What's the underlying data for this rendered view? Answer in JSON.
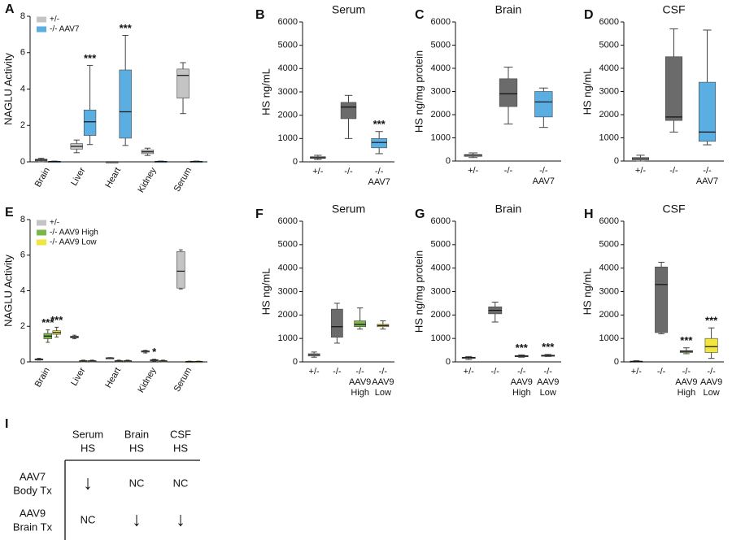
{
  "chart_data": [
    {
      "type": "box",
      "panel": "A",
      "ylabel": "NAGLU Activity",
      "ylim": [
        0,
        8
      ],
      "yticks": [
        0,
        2,
        4,
        6,
        8
      ],
      "categories": [
        "Brain",
        "Liver",
        "Heart",
        "Kidney",
        "Serum"
      ],
      "series": [
        {
          "name": "+/-",
          "color": "#c4c4c4",
          "min": [
            0,
            0.5,
            0,
            0.35,
            2.65
          ],
          "q1": [
            0.05,
            0.7,
            0,
            0.45,
            3.5
          ],
          "median": [
            0.1,
            0.85,
            0,
            0.55,
            4.75
          ],
          "q3": [
            0.15,
            1.0,
            0,
            0.65,
            5.1
          ],
          "max": [
            0.2,
            1.2,
            0,
            0.75,
            5.45
          ],
          "labels": [
            null,
            null,
            null,
            null,
            null
          ]
        },
        {
          "name": "-/- AAV7",
          "color": "#5aaee2",
          "min": [
            0,
            0.95,
            0.9,
            0,
            0
          ],
          "q1": [
            0.01,
            1.45,
            1.3,
            0.01,
            0.01
          ],
          "median": [
            0.02,
            2.2,
            2.75,
            0.02,
            0.02
          ],
          "q3": [
            0.03,
            2.85,
            5.05,
            0.03,
            0.03
          ],
          "max": [
            0.04,
            5.3,
            6.95,
            0.04,
            0.04
          ],
          "labels": [
            null,
            "***",
            "***",
            null,
            null
          ]
        }
      ]
    },
    {
      "type": "box",
      "panel": "B",
      "title": "Serum",
      "ylabel": "HS ng/mL",
      "ylim": [
        0,
        6000
      ],
      "yticks": [
        0,
        1000,
        2000,
        3000,
        4000,
        5000,
        6000
      ],
      "categories": [
        [
          "+/-"
        ],
        [
          "-/-"
        ],
        [
          "-/-",
          "AAV7"
        ]
      ],
      "boxes": [
        {
          "min": 100,
          "q1": 150,
          "median": 180,
          "q3": 220,
          "max": 280,
          "color": "#c4c4c4"
        },
        {
          "min": 1000,
          "q1": 1850,
          "median": 2350,
          "q3": 2550,
          "max": 2850,
          "color": "#6b6b6b"
        },
        {
          "min": 350,
          "q1": 600,
          "median": 830,
          "q3": 1000,
          "max": 1300,
          "color": "#5aaee2",
          "label": "***"
        }
      ]
    },
    {
      "type": "box",
      "panel": "C",
      "title": "Brain",
      "ylabel": "HS ng/mg protein",
      "ylim": [
        0,
        6000
      ],
      "yticks": [
        0,
        1000,
        2000,
        3000,
        4000,
        5000,
        6000
      ],
      "categories": [
        [
          "+/-"
        ],
        [
          "-/-"
        ],
        [
          "-/-",
          "AAV7"
        ]
      ],
      "boxes": [
        {
          "min": 150,
          "q1": 200,
          "median": 250,
          "q3": 280,
          "max": 350,
          "color": "#c4c4c4"
        },
        {
          "min": 1600,
          "q1": 2350,
          "median": 2900,
          "q3": 3550,
          "max": 4050,
          "color": "#6b6b6b"
        },
        {
          "min": 1450,
          "q1": 1900,
          "median": 2550,
          "q3": 3000,
          "max": 3150,
          "color": "#5aaee2"
        }
      ]
    },
    {
      "type": "box",
      "panel": "D",
      "title": "CSF",
      "ylabel": "HS ng/mL",
      "ylim": [
        0,
        6000
      ],
      "yticks": [
        0,
        1000,
        2000,
        3000,
        4000,
        5000,
        6000
      ],
      "categories": [
        [
          "+/-"
        ],
        [
          "-/-"
        ],
        [
          "-/-",
          "AAV7"
        ]
      ],
      "boxes": [
        {
          "min": 0,
          "q1": 50,
          "median": 100,
          "q3": 150,
          "max": 250,
          "color": "#c4c4c4"
        },
        {
          "min": 1250,
          "q1": 1750,
          "median": 1900,
          "q3": 4500,
          "max": 5700,
          "color": "#6b6b6b"
        },
        {
          "min": 700,
          "q1": 850,
          "median": 1250,
          "q3": 3400,
          "max": 5650,
          "color": "#5aaee2"
        }
      ]
    },
    {
      "type": "box",
      "panel": "E",
      "ylabel": "NAGLU Activity",
      "ylim": [
        0,
        8
      ],
      "yticks": [
        0,
        2,
        4,
        6,
        8
      ],
      "categories": [
        "Brain",
        "Liver",
        "Heart",
        "Kidney",
        "Serum"
      ],
      "series": [
        {
          "name": "+/-",
          "color": "#c4c4c4",
          "min": [
            0.1,
            1.3,
            0.2,
            0.5,
            4.1
          ],
          "q1": [
            0.12,
            1.35,
            0.21,
            0.55,
            4.15
          ],
          "median": [
            0.15,
            1.4,
            0.22,
            0.6,
            5.1
          ],
          "q3": [
            0.17,
            1.45,
            0.23,
            0.62,
            6.2
          ],
          "max": [
            0.2,
            1.5,
            0.24,
            0.65,
            6.3
          ],
          "labels": [
            null,
            null,
            null,
            null,
            null
          ]
        },
        {
          "name": "-/- AAV9 High",
          "color": "#7ab648",
          "min": [
            1.1,
            0,
            0,
            0.05,
            0
          ],
          "q1": [
            1.3,
            0.03,
            0.03,
            0.08,
            0.01
          ],
          "median": [
            1.45,
            0.05,
            0.05,
            0.1,
            0.02
          ],
          "q3": [
            1.6,
            0.07,
            0.07,
            0.12,
            0.03
          ],
          "max": [
            1.8,
            0.1,
            0.1,
            0.15,
            0.04
          ],
          "labels": [
            "***",
            null,
            null,
            "*",
            null
          ]
        },
        {
          "name": "-/- AAV9 Low",
          "color": "#f0e63c",
          "min": [
            1.4,
            0,
            0,
            0,
            0
          ],
          "q1": [
            1.55,
            0.03,
            0.03,
            0.03,
            0.01
          ],
          "median": [
            1.65,
            0.05,
            0.05,
            0.05,
            0.02
          ],
          "q3": [
            1.75,
            0.07,
            0.07,
            0.07,
            0.03
          ],
          "max": [
            1.95,
            0.1,
            0.1,
            0.1,
            0.04
          ],
          "labels": [
            "***",
            null,
            null,
            null,
            null
          ]
        }
      ]
    },
    {
      "type": "box",
      "panel": "F",
      "title": "Serum",
      "ylabel": "HS ng/mL",
      "ylim": [
        0,
        6000
      ],
      "yticks": [
        0,
        1000,
        2000,
        3000,
        4000,
        5000,
        6000
      ],
      "categories": [
        [
          "+/-"
        ],
        [
          "-/-"
        ],
        [
          "-/-",
          "AAV9",
          "High"
        ],
        [
          "-/-",
          "AAV9",
          "Low"
        ]
      ],
      "boxes": [
        {
          "min": 200,
          "q1": 250,
          "median": 300,
          "q3": 350,
          "max": 420,
          "color": "#c4c4c4"
        },
        {
          "min": 800,
          "q1": 1050,
          "median": 1500,
          "q3": 2250,
          "max": 2500,
          "color": "#6b6b6b"
        },
        {
          "min": 1400,
          "q1": 1500,
          "median": 1600,
          "q3": 1750,
          "max": 2300,
          "color": "#7ab648"
        },
        {
          "min": 1400,
          "q1": 1500,
          "median": 1550,
          "q3": 1600,
          "max": 1750,
          "color": "#f0e63c"
        }
      ]
    },
    {
      "type": "box",
      "panel": "G",
      "title": "Brain",
      "ylabel": "HS ng/mg protein",
      "ylim": [
        0,
        6000
      ],
      "yticks": [
        0,
        1000,
        2000,
        3000,
        4000,
        5000,
        6000
      ],
      "categories": [
        [
          "+/-"
        ],
        [
          "-/-"
        ],
        [
          "-/-",
          "AAV9",
          "High"
        ],
        [
          "-/-",
          "AAV9",
          "Low"
        ]
      ],
      "boxes": [
        {
          "min": 100,
          "q1": 150,
          "median": 180,
          "q3": 200,
          "max": 230,
          "color": "#c4c4c4"
        },
        {
          "min": 1700,
          "q1": 2050,
          "median": 2200,
          "q3": 2350,
          "max": 2550,
          "color": "#6b6b6b"
        },
        {
          "min": 200,
          "q1": 220,
          "median": 250,
          "q3": 270,
          "max": 300,
          "color": "#7ab648",
          "label": "***"
        },
        {
          "min": 230,
          "q1": 250,
          "median": 270,
          "q3": 290,
          "max": 320,
          "color": "#f0e63c",
          "label": "***"
        }
      ]
    },
    {
      "type": "box",
      "panel": "H",
      "title": "CSF",
      "ylabel": "HS ng/mL",
      "ylim": [
        0,
        6000
      ],
      "yticks": [
        0,
        1000,
        2000,
        3000,
        4000,
        5000,
        6000
      ],
      "categories": [
        [
          "+/-"
        ],
        [
          "-/-"
        ],
        [
          "-/-",
          "AAV9",
          "High"
        ],
        [
          "-/-",
          "AAV9",
          "Low"
        ]
      ],
      "boxes": [
        {
          "min": 0,
          "q1": 10,
          "median": 20,
          "q3": 30,
          "max": 50,
          "color": "#c4c4c4"
        },
        {
          "min": 1200,
          "q1": 1250,
          "median": 3300,
          "q3": 4050,
          "max": 4250,
          "color": "#6b6b6b"
        },
        {
          "min": 350,
          "q1": 400,
          "median": 450,
          "q3": 480,
          "max": 600,
          "color": "#7ab648",
          "label": "***"
        },
        {
          "min": 150,
          "q1": 400,
          "median": 650,
          "q3": 1000,
          "max": 1450,
          "color": "#f0e63c",
          "label": "***"
        }
      ]
    }
  ],
  "table": {
    "panel": "I",
    "columns": [
      [
        "Serum",
        "HS"
      ],
      [
        "Brain",
        "HS"
      ],
      [
        "CSF",
        "HS"
      ]
    ],
    "rows": [
      {
        "label": [
          "AAV7",
          "Body Tx"
        ],
        "cells": [
          "↓",
          "NC",
          "NC"
        ]
      },
      {
        "label": [
          "AAV9",
          "Brain Tx"
        ],
        "cells": [
          "NC",
          "↓",
          "↓"
        ]
      }
    ]
  }
}
